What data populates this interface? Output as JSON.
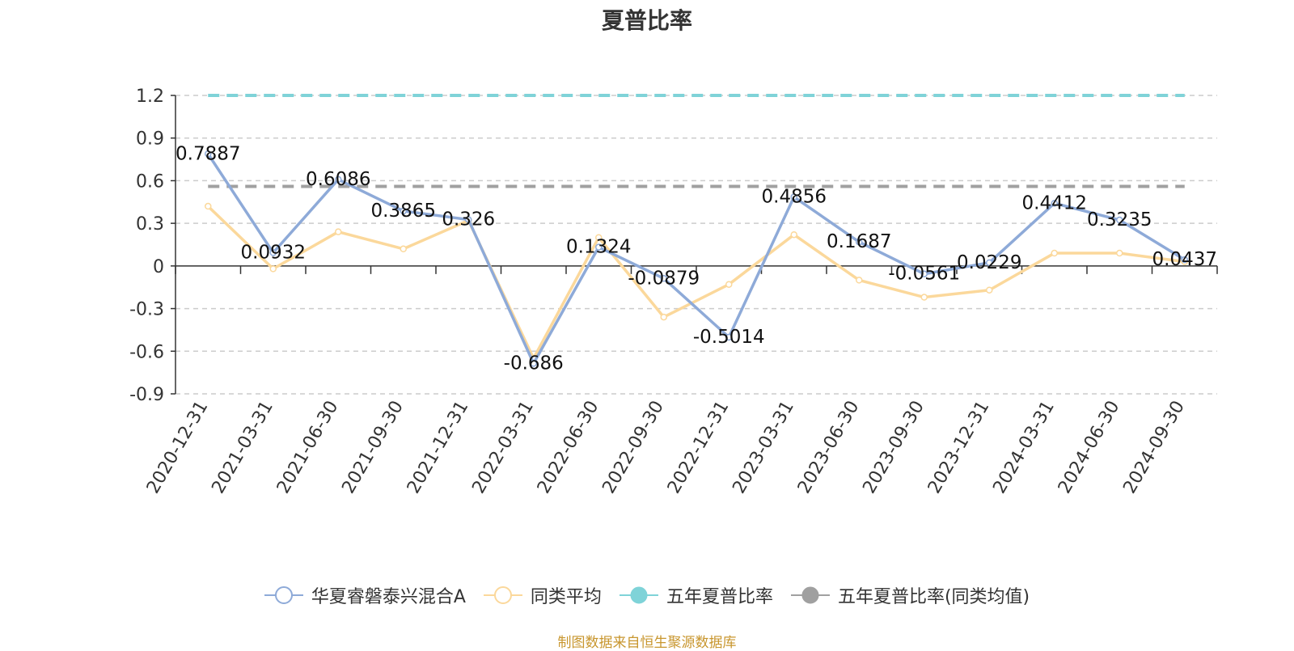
{
  "chart_data": {
    "type": "line",
    "title": "夏普比率",
    "categories": [
      "2020-12-31",
      "2021-03-31",
      "2021-06-30",
      "2021-09-30",
      "2021-12-31",
      "2022-03-31",
      "2022-06-30",
      "2022-09-30",
      "2022-12-31",
      "2023-03-31",
      "2023-06-30",
      "2023-09-30",
      "2023-12-31",
      "2024-03-31",
      "2024-06-30",
      "2024-09-30"
    ],
    "y_ticks": [
      "1.2",
      "0.9",
      "0.6",
      "0.3",
      "0",
      "-0.3",
      "-0.6",
      "-0.9"
    ],
    "ylim": [
      -0.9,
      1.2
    ],
    "grid": true,
    "legend_position": "bottom",
    "series": [
      {
        "name": "华夏睿磐泰兴混合A",
        "color": "#8eaad8",
        "marker": "hollow-circle",
        "values": [
          0.7887,
          0.0932,
          0.6086,
          0.3865,
          0.326,
          -0.686,
          0.1324,
          -0.0879,
          -0.5014,
          0.4856,
          0.1687,
          -0.0561,
          0.0229,
          0.4412,
          0.3235,
          0.0437
        ],
        "labels": [
          "0.7887",
          "0.0932",
          "0.6086",
          "0.3865",
          "0.326",
          "-0.686",
          "0.1324",
          "-0.0879",
          "-0.5014",
          "0.4856",
          "0.1687",
          "-0.0561",
          "0.0229",
          "0.4412",
          "0.3235",
          "0.0437"
        ]
      },
      {
        "name": "同类平均",
        "color": "#fbd89b",
        "marker": "hollow-circle",
        "values": [
          0.42,
          -0.02,
          0.24,
          0.12,
          0.32,
          -0.65,
          0.2,
          -0.36,
          -0.13,
          0.22,
          -0.1,
          -0.22,
          -0.17,
          0.09,
          0.09,
          0.03
        ]
      },
      {
        "name": "五年夏普比率",
        "color": "#7fd3d8",
        "marker": "filled-circle",
        "line_style": "dashed",
        "values": [
          1.2,
          1.2,
          1.2,
          1.2,
          1.2,
          1.2,
          1.2,
          1.2,
          1.2,
          1.2,
          1.2,
          1.2,
          1.2,
          1.2,
          1.2,
          1.2
        ]
      },
      {
        "name": "五年夏普比率(同类均值)",
        "color": "#a0a0a0",
        "marker": "filled-circle",
        "line_style": "dashed",
        "values": [
          0.56,
          0.56,
          0.56,
          0.56,
          0.56,
          0.56,
          0.56,
          0.56,
          0.56,
          0.56,
          0.56,
          0.56,
          0.56,
          0.56,
          0.56,
          0.56
        ]
      }
    ]
  },
  "source_note": "制图数据来自恒生聚源数据库"
}
